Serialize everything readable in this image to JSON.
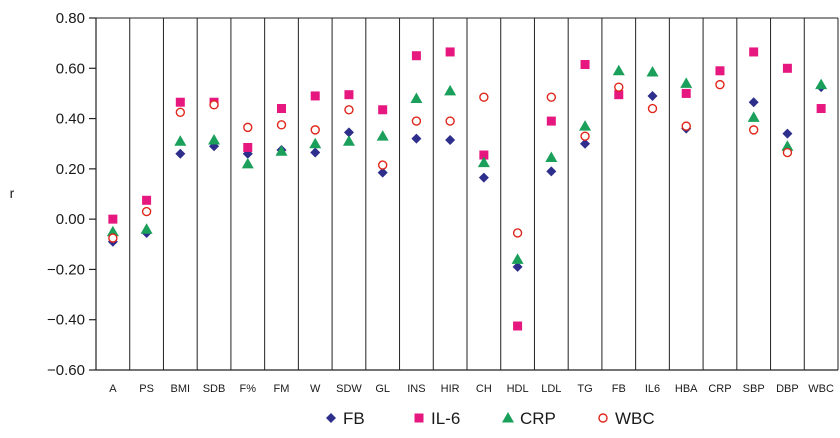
{
  "chart_data": {
    "type": "scatter",
    "ylabel": "r",
    "ylim": [
      -0.6,
      0.8
    ],
    "yticks": [
      "0.80",
      "0.60",
      "0.40",
      "0.20",
      "0.00",
      "−0.20",
      "−0.40",
      "−0.60"
    ],
    "ytick_values": [
      0.8,
      0.6,
      0.4,
      0.2,
      0.0,
      -0.2,
      -0.4,
      -0.6
    ],
    "categories": [
      "A",
      "PS",
      "BMI",
      "SDB",
      "F%",
      "FM",
      "W",
      "SDW",
      "GL",
      "INS",
      "HIR",
      "CH",
      "HDL",
      "LDL",
      "TG",
      "FB",
      "IL6",
      "HBA",
      "CRP",
      "SBP",
      "DBP",
      "WBC"
    ],
    "grid": "vertical",
    "legend_position": "bottom",
    "series": [
      {
        "name": "FB",
        "marker": "diamond",
        "color": "#2e2e8c",
        "values": [
          -0.09,
          -0.055,
          0.26,
          0.29,
          0.26,
          0.275,
          0.265,
          0.345,
          0.185,
          0.32,
          0.315,
          0.165,
          -0.19,
          0.19,
          0.3,
          null,
          0.49,
          0.36,
          null,
          0.465,
          0.34,
          0.525
        ]
      },
      {
        "name": "IL-6",
        "marker": "square",
        "color": "#e6177f",
        "values": [
          0.0,
          0.075,
          0.465,
          0.465,
          0.285,
          0.44,
          0.49,
          0.495,
          0.435,
          0.65,
          0.665,
          0.255,
          -0.425,
          0.39,
          0.615,
          0.495,
          null,
          0.5,
          0.59,
          0.665,
          0.6,
          0.44
        ]
      },
      {
        "name": "CRP",
        "marker": "triangle",
        "color": "#1aa05a",
        "values": [
          -0.05,
          -0.04,
          0.31,
          0.315,
          0.22,
          0.27,
          0.3,
          0.31,
          0.33,
          0.48,
          0.51,
          0.225,
          -0.16,
          0.245,
          0.37,
          0.59,
          0.585,
          0.54,
          null,
          0.405,
          0.29,
          0.535
        ]
      },
      {
        "name": "WBC",
        "marker": "circle",
        "color": "#e0261a",
        "values": [
          -0.075,
          0.03,
          0.425,
          0.455,
          0.365,
          0.375,
          0.355,
          0.435,
          0.215,
          0.39,
          0.39,
          0.485,
          -0.055,
          0.485,
          0.33,
          0.525,
          0.44,
          0.37,
          0.535,
          0.355,
          0.265,
          null
        ]
      }
    ]
  }
}
